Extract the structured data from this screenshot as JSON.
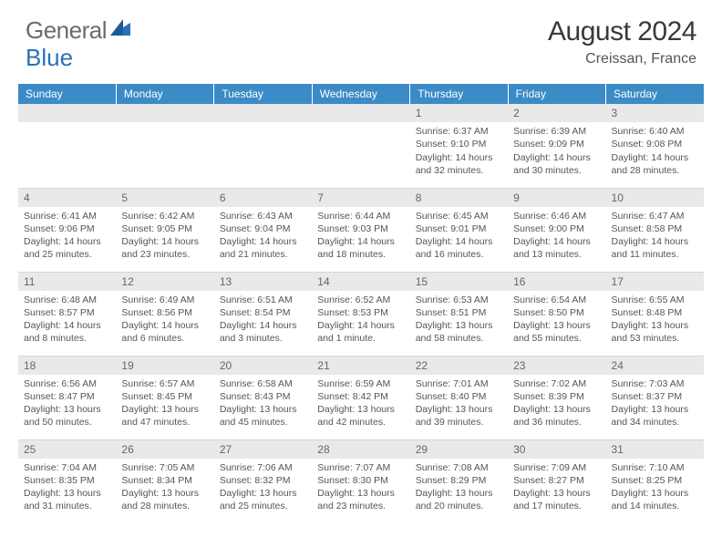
{
  "brand": {
    "word1": "General",
    "word2": "Blue"
  },
  "header": {
    "title": "August 2024",
    "location": "Creissan, France"
  },
  "colors": {
    "header_bg": "#3b8bc6",
    "header_text": "#ffffff",
    "daynum_bg": "#e9e9e9",
    "row_border": "#d6d6d6",
    "body_text": "#555555",
    "brand_gray": "#6b6b6b",
    "brand_blue": "#2a72b5"
  },
  "weekdays": [
    "Sunday",
    "Monday",
    "Tuesday",
    "Wednesday",
    "Thursday",
    "Friday",
    "Saturday"
  ],
  "weeks": [
    [
      null,
      null,
      null,
      null,
      {
        "n": "1",
        "sunrise": "Sunrise: 6:37 AM",
        "sunset": "Sunset: 9:10 PM",
        "day": "Daylight: 14 hours and 32 minutes."
      },
      {
        "n": "2",
        "sunrise": "Sunrise: 6:39 AM",
        "sunset": "Sunset: 9:09 PM",
        "day": "Daylight: 14 hours and 30 minutes."
      },
      {
        "n": "3",
        "sunrise": "Sunrise: 6:40 AM",
        "sunset": "Sunset: 9:08 PM",
        "day": "Daylight: 14 hours and 28 minutes."
      }
    ],
    [
      {
        "n": "4",
        "sunrise": "Sunrise: 6:41 AM",
        "sunset": "Sunset: 9:06 PM",
        "day": "Daylight: 14 hours and 25 minutes."
      },
      {
        "n": "5",
        "sunrise": "Sunrise: 6:42 AM",
        "sunset": "Sunset: 9:05 PM",
        "day": "Daylight: 14 hours and 23 minutes."
      },
      {
        "n": "6",
        "sunrise": "Sunrise: 6:43 AM",
        "sunset": "Sunset: 9:04 PM",
        "day": "Daylight: 14 hours and 21 minutes."
      },
      {
        "n": "7",
        "sunrise": "Sunrise: 6:44 AM",
        "sunset": "Sunset: 9:03 PM",
        "day": "Daylight: 14 hours and 18 minutes."
      },
      {
        "n": "8",
        "sunrise": "Sunrise: 6:45 AM",
        "sunset": "Sunset: 9:01 PM",
        "day": "Daylight: 14 hours and 16 minutes."
      },
      {
        "n": "9",
        "sunrise": "Sunrise: 6:46 AM",
        "sunset": "Sunset: 9:00 PM",
        "day": "Daylight: 14 hours and 13 minutes."
      },
      {
        "n": "10",
        "sunrise": "Sunrise: 6:47 AM",
        "sunset": "Sunset: 8:58 PM",
        "day": "Daylight: 14 hours and 11 minutes."
      }
    ],
    [
      {
        "n": "11",
        "sunrise": "Sunrise: 6:48 AM",
        "sunset": "Sunset: 8:57 PM",
        "day": "Daylight: 14 hours and 8 minutes."
      },
      {
        "n": "12",
        "sunrise": "Sunrise: 6:49 AM",
        "sunset": "Sunset: 8:56 PM",
        "day": "Daylight: 14 hours and 6 minutes."
      },
      {
        "n": "13",
        "sunrise": "Sunrise: 6:51 AM",
        "sunset": "Sunset: 8:54 PM",
        "day": "Daylight: 14 hours and 3 minutes."
      },
      {
        "n": "14",
        "sunrise": "Sunrise: 6:52 AM",
        "sunset": "Sunset: 8:53 PM",
        "day": "Daylight: 14 hours and 1 minute."
      },
      {
        "n": "15",
        "sunrise": "Sunrise: 6:53 AM",
        "sunset": "Sunset: 8:51 PM",
        "day": "Daylight: 13 hours and 58 minutes."
      },
      {
        "n": "16",
        "sunrise": "Sunrise: 6:54 AM",
        "sunset": "Sunset: 8:50 PM",
        "day": "Daylight: 13 hours and 55 minutes."
      },
      {
        "n": "17",
        "sunrise": "Sunrise: 6:55 AM",
        "sunset": "Sunset: 8:48 PM",
        "day": "Daylight: 13 hours and 53 minutes."
      }
    ],
    [
      {
        "n": "18",
        "sunrise": "Sunrise: 6:56 AM",
        "sunset": "Sunset: 8:47 PM",
        "day": "Daylight: 13 hours and 50 minutes."
      },
      {
        "n": "19",
        "sunrise": "Sunrise: 6:57 AM",
        "sunset": "Sunset: 8:45 PM",
        "day": "Daylight: 13 hours and 47 minutes."
      },
      {
        "n": "20",
        "sunrise": "Sunrise: 6:58 AM",
        "sunset": "Sunset: 8:43 PM",
        "day": "Daylight: 13 hours and 45 minutes."
      },
      {
        "n": "21",
        "sunrise": "Sunrise: 6:59 AM",
        "sunset": "Sunset: 8:42 PM",
        "day": "Daylight: 13 hours and 42 minutes."
      },
      {
        "n": "22",
        "sunrise": "Sunrise: 7:01 AM",
        "sunset": "Sunset: 8:40 PM",
        "day": "Daylight: 13 hours and 39 minutes."
      },
      {
        "n": "23",
        "sunrise": "Sunrise: 7:02 AM",
        "sunset": "Sunset: 8:39 PM",
        "day": "Daylight: 13 hours and 36 minutes."
      },
      {
        "n": "24",
        "sunrise": "Sunrise: 7:03 AM",
        "sunset": "Sunset: 8:37 PM",
        "day": "Daylight: 13 hours and 34 minutes."
      }
    ],
    [
      {
        "n": "25",
        "sunrise": "Sunrise: 7:04 AM",
        "sunset": "Sunset: 8:35 PM",
        "day": "Daylight: 13 hours and 31 minutes."
      },
      {
        "n": "26",
        "sunrise": "Sunrise: 7:05 AM",
        "sunset": "Sunset: 8:34 PM",
        "day": "Daylight: 13 hours and 28 minutes."
      },
      {
        "n": "27",
        "sunrise": "Sunrise: 7:06 AM",
        "sunset": "Sunset: 8:32 PM",
        "day": "Daylight: 13 hours and 25 minutes."
      },
      {
        "n": "28",
        "sunrise": "Sunrise: 7:07 AM",
        "sunset": "Sunset: 8:30 PM",
        "day": "Daylight: 13 hours and 23 minutes."
      },
      {
        "n": "29",
        "sunrise": "Sunrise: 7:08 AM",
        "sunset": "Sunset: 8:29 PM",
        "day": "Daylight: 13 hours and 20 minutes."
      },
      {
        "n": "30",
        "sunrise": "Sunrise: 7:09 AM",
        "sunset": "Sunset: 8:27 PM",
        "day": "Daylight: 13 hours and 17 minutes."
      },
      {
        "n": "31",
        "sunrise": "Sunrise: 7:10 AM",
        "sunset": "Sunset: 8:25 PM",
        "day": "Daylight: 13 hours and 14 minutes."
      }
    ]
  ]
}
